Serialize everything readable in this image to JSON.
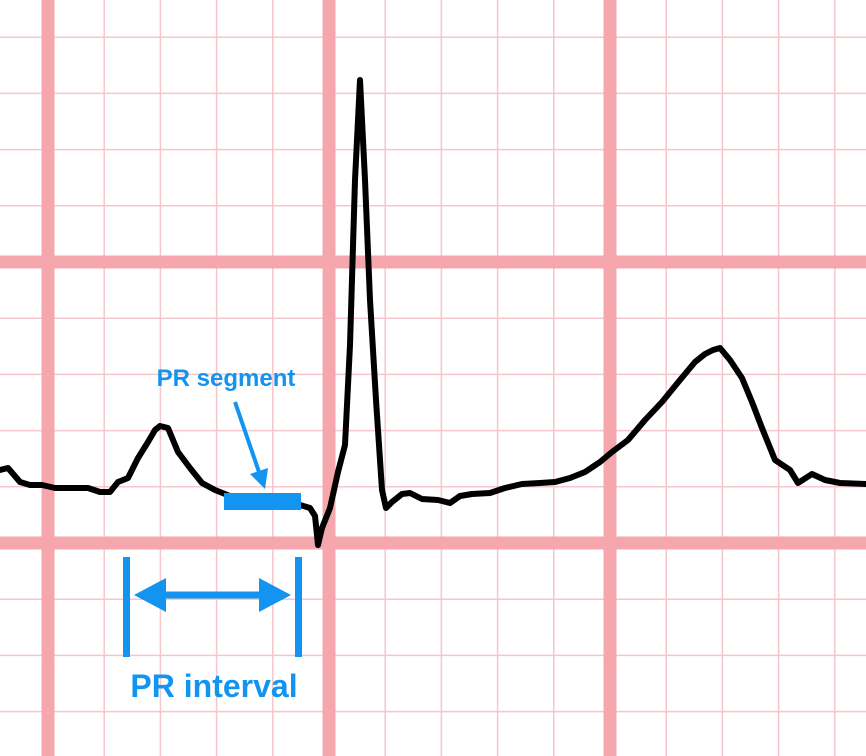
{
  "diagram": {
    "labels": {
      "pr_segment": "PR segment",
      "pr_interval": "PR interval"
    },
    "colors": {
      "background": "#ffffff",
      "minor_grid": "#f5c6cc",
      "major_grid": "#f6a7ae",
      "trace": "#000000",
      "annotation": "#1294f0"
    },
    "waveform_features": [
      "P wave",
      "QRS complex",
      "T wave"
    ]
  }
}
